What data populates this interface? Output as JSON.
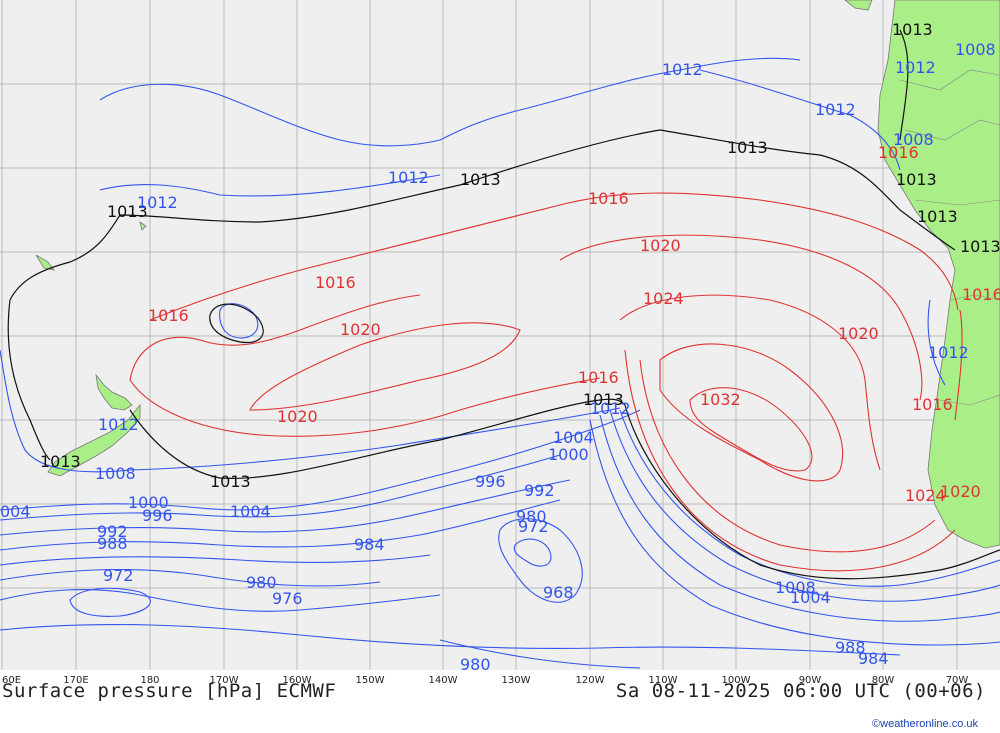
{
  "map": {
    "footer_title": "Surface pressure [hPa] ECMWF",
    "footer_time": "Sa 08-11-2025 06:00 UTC (00+06)",
    "credit": "©weatheronline.co.uk",
    "x_ticks": [
      "60E",
      "170E",
      "180",
      "170W",
      "160W",
      "150W",
      "140W",
      "130W",
      "120W",
      "110W",
      "100W",
      "90W",
      "80W",
      "70W"
    ],
    "colors": {
      "ocean": "#efefef",
      "land": "#aaee88",
      "grid": "#bbbbbb",
      "isobar_low": "#3355ee",
      "isobar_high": "#e03333",
      "isobar_1013": "#111111"
    },
    "isobar_labels": {
      "l1013_a": "1013",
      "l1013_b": "1013",
      "l1013_c": "1013",
      "l1013_d": "1013",
      "l1013_e": "1013",
      "l1013_f": "1013",
      "l1013_g": "1013",
      "l1013_h": "1013",
      "l1013_i": "1013",
      "l1012_a": "1012",
      "l1012_b": "1012",
      "l1012_c": "1012",
      "l1012_d": "1012",
      "l1012_e": "1012",
      "l1012_f": "1012",
      "l1012_g": "1012",
      "l1012_h": "1012",
      "l1008_a": "1008",
      "l1008_b": "1008",
      "l1008_c": "1008",
      "l1008_d": "1008",
      "l1016_a": "1016",
      "l1016_b": "1016",
      "l1016_c": "1016",
      "l1016_d": "1016",
      "l1016_e": "1016",
      "l1016_f": "1016",
      "l1016_g": "1016",
      "l1020_a": "1020",
      "l1020_b": "1020",
      "l1020_c": "1020",
      "l1020_d": "1020",
      "l1020_e": "1020",
      "l1024_a": "1024",
      "l1024_b": "1024",
      "l1032": "1032",
      "l1004_a": "1004",
      "l1004_b": "1004",
      "l1004_c": "004",
      "l1004_d": "1004",
      "l1000_a": "1000",
      "l1000_b": "1000",
      "l996_a": "996",
      "l996_b": "996",
      "l992_a": "992",
      "l992_b": "992",
      "l988_a": "988",
      "l988_b": "988",
      "l984_a": "984",
      "l984_b": "984",
      "l980_a": "980",
      "l980_b": "980",
      "l980_c": "980",
      "l976": "976",
      "l972_a": "972",
      "l972_b": "972",
      "l968": "968"
    }
  }
}
